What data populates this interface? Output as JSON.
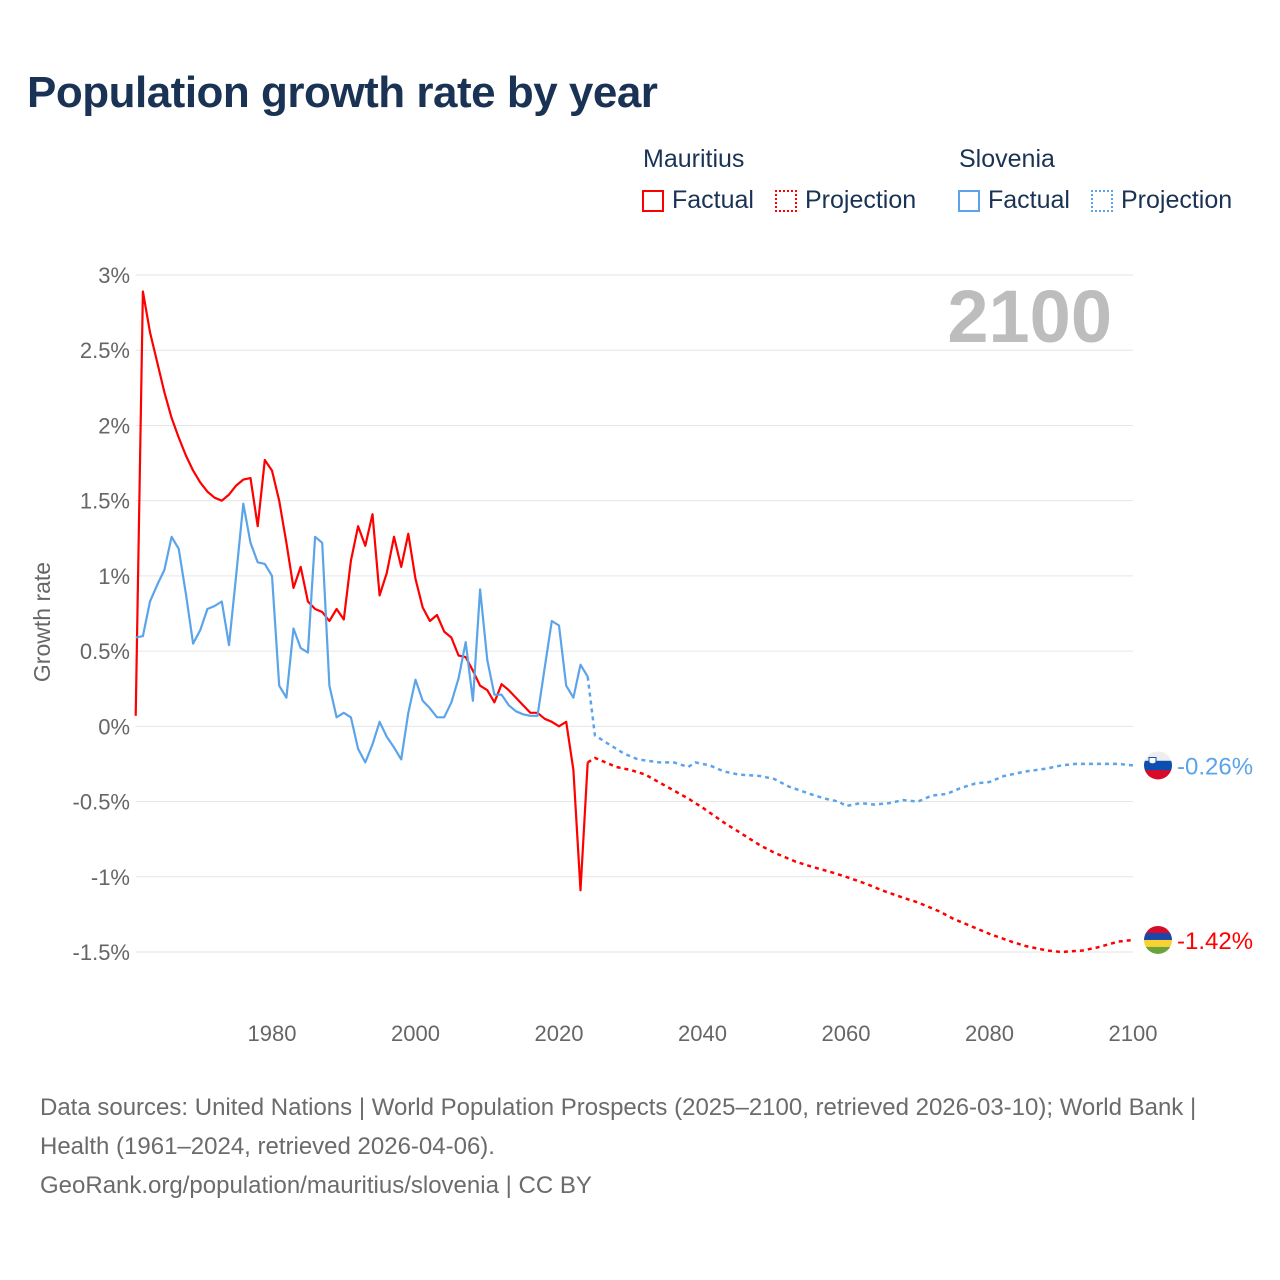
{
  "title": "Population growth rate by year",
  "legend": {
    "groups": [
      {
        "name": "Mauritius",
        "color": "#ff0000",
        "factual_label": "Factual",
        "projection_label": "Projection"
      },
      {
        "name": "Slovenia",
        "color": "#5ba4ea",
        "factual_label": "Factual",
        "projection_label": "Projection"
      }
    ]
  },
  "chart_data": {
    "type": "line",
    "title": "Population growth rate by year",
    "ylabel": "Growth rate",
    "xlabel": "",
    "year_label": "2100",
    "xlim": [
      1961,
      2100
    ],
    "ylim": [
      -1.5,
      3
    ],
    "x_ticks": [
      1980,
      2000,
      2020,
      2040,
      2060,
      2080,
      2100
    ],
    "y_ticks": [
      3,
      2.5,
      2,
      1.5,
      1,
      0.5,
      0,
      -0.5,
      -1,
      -1.5
    ],
    "y_tick_labels": [
      "3%",
      "2.5%",
      "2%",
      "1.5%",
      "1%",
      "0.5%",
      "0%",
      "-0.5%",
      "-1%",
      "-1.5%"
    ],
    "grid": true,
    "legend_placement": "top-right",
    "series": [
      {
        "name": "Mauritius",
        "color": "#ff0000",
        "end_label": "-1.42%",
        "factual": {
          "start_year": 1961,
          "values": [
            0.07,
            2.89,
            2.62,
            2.42,
            2.22,
            2.05,
            1.92,
            1.8,
            1.7,
            1.62,
            1.56,
            1.52,
            1.5,
            1.54,
            1.6,
            1.64,
            1.65,
            1.33,
            1.77,
            1.7,
            1.5,
            1.22,
            0.92,
            1.06,
            0.83,
            0.78,
            0.76,
            0.7,
            0.78,
            0.71,
            1.1,
            1.33,
            1.2,
            1.41,
            0.87,
            1.02,
            1.26,
            1.06,
            1.28,
            0.98,
            0.79,
            0.7,
            0.74,
            0.63,
            0.59,
            0.47,
            0.46,
            0.37,
            0.27,
            0.24,
            0.16,
            0.28,
            0.24,
            0.19,
            0.14,
            0.09,
            0.09,
            0.05,
            0.03,
            0.0,
            0.03,
            -0.29,
            -1.09,
            -0.24
          ]
        },
        "projection": {
          "years": [
            2024,
            2025,
            2028,
            2030,
            2032,
            2035,
            2038,
            2040,
            2043,
            2045,
            2048,
            2050,
            2053,
            2055,
            2058,
            2060,
            2063,
            2065,
            2068,
            2070,
            2073,
            2075,
            2078,
            2080,
            2083,
            2085,
            2088,
            2090,
            2093,
            2095,
            2098,
            2100
          ],
          "values": [
            -0.24,
            -0.21,
            -0.27,
            -0.29,
            -0.32,
            -0.4,
            -0.48,
            -0.54,
            -0.64,
            -0.7,
            -0.79,
            -0.84,
            -0.9,
            -0.93,
            -0.97,
            -1.0,
            -1.05,
            -1.09,
            -1.14,
            -1.17,
            -1.23,
            -1.28,
            -1.34,
            -1.38,
            -1.43,
            -1.46,
            -1.49,
            -1.5,
            -1.49,
            -1.47,
            -1.43,
            -1.42
          ]
        }
      },
      {
        "name": "Slovenia",
        "color": "#5ba4ea",
        "end_label": "-0.26%",
        "factual": {
          "start_year": 1961,
          "values": [
            0.59,
            0.6,
            0.83,
            0.94,
            1.04,
            1.26,
            1.18,
            0.88,
            0.55,
            0.64,
            0.78,
            0.8,
            0.83,
            0.54,
            1.0,
            1.48,
            1.22,
            1.09,
            1.08,
            1.0,
            0.27,
            0.19,
            0.65,
            0.52,
            0.49,
            1.26,
            1.22,
            0.27,
            0.06,
            0.09,
            0.06,
            -0.15,
            -0.24,
            -0.12,
            0.03,
            -0.07,
            -0.14,
            -0.22,
            0.09,
            0.31,
            0.17,
            0.12,
            0.06,
            0.06,
            0.16,
            0.32,
            0.56,
            0.17,
            0.91,
            0.44,
            0.21,
            0.21,
            0.14,
            0.1,
            0.08,
            0.07,
            0.07,
            0.39,
            0.7,
            0.67,
            0.27,
            0.19,
            0.41,
            0.33
          ]
        },
        "projection": {
          "years": [
            2024,
            2025,
            2027,
            2029,
            2031,
            2034,
            2036,
            2038,
            2039,
            2041,
            2043,
            2045,
            2048,
            2050,
            2052,
            2055,
            2057,
            2059,
            2060,
            2062,
            2064,
            2066,
            2068,
            2070,
            2072,
            2074,
            2076,
            2078,
            2080,
            2082,
            2085,
            2088,
            2090,
            2092,
            2095,
            2098,
            2100
          ],
          "values": [
            0.33,
            -0.06,
            -0.12,
            -0.18,
            -0.22,
            -0.24,
            -0.24,
            -0.27,
            -0.24,
            -0.26,
            -0.3,
            -0.32,
            -0.33,
            -0.35,
            -0.4,
            -0.45,
            -0.48,
            -0.5,
            -0.53,
            -0.51,
            -0.52,
            -0.51,
            -0.49,
            -0.5,
            -0.46,
            -0.45,
            -0.41,
            -0.38,
            -0.37,
            -0.33,
            -0.3,
            -0.28,
            -0.26,
            -0.25,
            -0.25,
            -0.25,
            -0.26
          ]
        }
      }
    ]
  },
  "footer": {
    "line1": "Data sources: United Nations | World Population Prospects (2025–2100, retrieved 2026-03-10); World Bank | Health (1961–2024, retrieved 2026-04-06).",
    "line2": "GeoRank.org/population/mauritius/slovenia | CC BY"
  }
}
